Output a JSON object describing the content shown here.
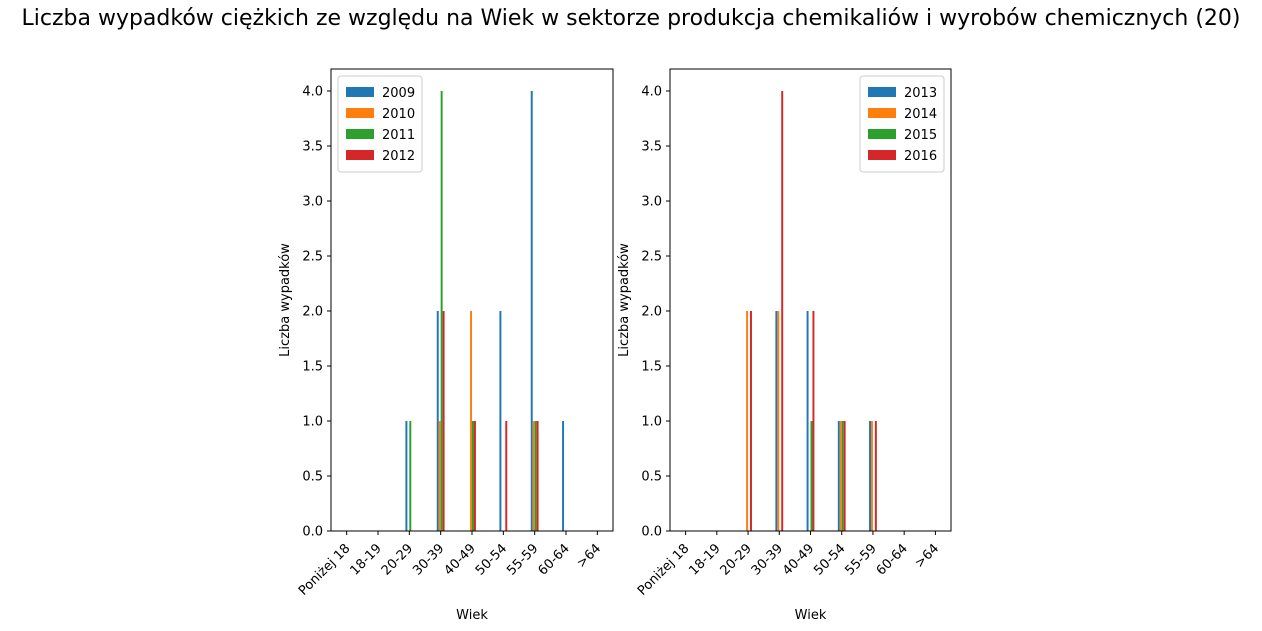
{
  "figure": {
    "title": "Liczba wypadków ciężkich ze względu na Wiek w sektorze produkcja chemikaliów i wyrobów  chemicznych (20)"
  },
  "chart_data": [
    {
      "type": "bar",
      "categories": [
        "Poniżej 18",
        "18-19",
        "20-29",
        "30-39",
        "40-49",
        "50-54",
        "55-59",
        "60-64",
        ">64"
      ],
      "xlabel": "Wiek",
      "ylabel": "Liczba wypadków",
      "ylim": [
        0,
        4.2
      ],
      "yticks": [
        "0.0",
        "0.5",
        "1.0",
        "1.5",
        "2.0",
        "2.5",
        "3.0",
        "3.5",
        "4.0"
      ],
      "legend_position": "top-left",
      "grid": false,
      "series": [
        {
          "name": "2009",
          "color": "#1f77b4",
          "values": [
            0,
            0,
            1,
            2,
            0,
            2,
            4,
            1,
            0
          ]
        },
        {
          "name": "2010",
          "color": "#ff7f0e",
          "values": [
            0,
            0,
            0,
            1,
            2,
            0,
            1,
            0,
            0
          ]
        },
        {
          "name": "2011",
          "color": "#2ca02c",
          "values": [
            0,
            0,
            1,
            4,
            1,
            0,
            1,
            0,
            0
          ]
        },
        {
          "name": "2012",
          "color": "#d62728",
          "values": [
            0,
            0,
            0,
            2,
            1,
            1,
            1,
            0,
            0
          ]
        }
      ]
    },
    {
      "type": "bar",
      "categories": [
        "Poniżej 18",
        "18-19",
        "20-29",
        "30-39",
        "40-49",
        "50-54",
        "55-59",
        "60-64",
        ">64"
      ],
      "xlabel": "Wiek",
      "ylabel": "Liczba wypadków",
      "ylim": [
        0,
        4.2
      ],
      "yticks": [
        "0.0",
        "0.5",
        "1.0",
        "1.5",
        "2.0",
        "2.5",
        "3.0",
        "3.5",
        "4.0"
      ],
      "legend_position": "top-right",
      "grid": false,
      "series": [
        {
          "name": "2013",
          "color": "#1f77b4",
          "values": [
            0,
            0,
            0,
            2,
            2,
            1,
            1,
            0,
            0
          ]
        },
        {
          "name": "2014",
          "color": "#ff7f0e",
          "values": [
            0,
            0,
            2,
            2,
            0,
            1,
            1,
            0,
            0
          ]
        },
        {
          "name": "2015",
          "color": "#2ca02c",
          "values": [
            0,
            0,
            0,
            0,
            1,
            1,
            0,
            0,
            0
          ]
        },
        {
          "name": "2016",
          "color": "#d62728",
          "values": [
            0,
            0,
            2,
            4,
            2,
            1,
            1,
            0,
            0
          ]
        }
      ]
    }
  ]
}
